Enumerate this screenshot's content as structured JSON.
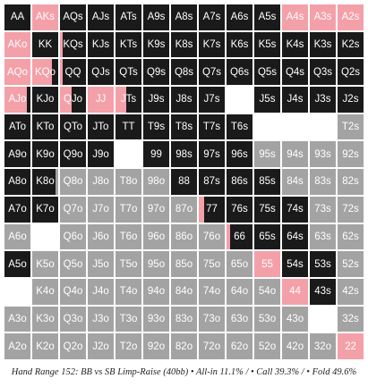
{
  "caption": "Hand Range 152: BB vs SB Limp-Raise (40bb) • All-in 11.1% / • Call 39.3% / • Fold 49.6%",
  "colors": {
    "allin": "#f4a0a9",
    "call": "#1a1a1a",
    "fold": "#a3a3a3",
    "none": "#ffffff"
  },
  "chart_data": {
    "type": "table",
    "title": "Hand Range 152: BB vs SB Limp-Raise (40bb)",
    "summary": {
      "allin_pct": 11.1,
      "call_pct": 39.3,
      "fold_pct": 49.6
    },
    "note": "each cell: action frequencies as fractions [allin, call, fold]",
    "rows": [
      [
        {
          "hand": "AA",
          "a": 0,
          "c": 1,
          "f": 0
        },
        {
          "hand": "AKs",
          "a": 1,
          "c": 0,
          "f": 0
        },
        {
          "hand": "AQs",
          "a": 0,
          "c": 1,
          "f": 0
        },
        {
          "hand": "AJs",
          "a": 0,
          "c": 1,
          "f": 0
        },
        {
          "hand": "ATs",
          "a": 0,
          "c": 1,
          "f": 0
        },
        {
          "hand": "A9s",
          "a": 0,
          "c": 1,
          "f": 0
        },
        {
          "hand": "A8s",
          "a": 0,
          "c": 1,
          "f": 0
        },
        {
          "hand": "A7s",
          "a": 0,
          "c": 1,
          "f": 0
        },
        {
          "hand": "A6s",
          "a": 0,
          "c": 1,
          "f": 0
        },
        {
          "hand": "A5s",
          "a": 0,
          "c": 1,
          "f": 0
        },
        {
          "hand": "A4s",
          "a": 1,
          "c": 0,
          "f": 0
        },
        {
          "hand": "A3s",
          "a": 1,
          "c": 0,
          "f": 0
        },
        {
          "hand": "A2s",
          "a": 1,
          "c": 0,
          "f": 0
        }
      ],
      [
        {
          "hand": "AKo",
          "a": 1,
          "c": 0,
          "f": 0
        },
        {
          "hand": "KK",
          "a": 0,
          "c": 1,
          "f": 0
        },
        {
          "hand": "KQs",
          "a": 0.1,
          "c": 0.9,
          "f": 0
        },
        {
          "hand": "KJs",
          "a": 0,
          "c": 1,
          "f": 0
        },
        {
          "hand": "KTs",
          "a": 0,
          "c": 1,
          "f": 0
        },
        {
          "hand": "K9s",
          "a": 0,
          "c": 1,
          "f": 0
        },
        {
          "hand": "K8s",
          "a": 0,
          "c": 1,
          "f": 0
        },
        {
          "hand": "K7s",
          "a": 0,
          "c": 1,
          "f": 0
        },
        {
          "hand": "K6s",
          "a": 0,
          "c": 1,
          "f": 0
        },
        {
          "hand": "K5s",
          "a": 0,
          "c": 1,
          "f": 0
        },
        {
          "hand": "K4s",
          "a": 0,
          "c": 1,
          "f": 0
        },
        {
          "hand": "K3s",
          "a": 0,
          "c": 1,
          "f": 0
        },
        {
          "hand": "K2s",
          "a": 0,
          "c": 1,
          "f": 0
        }
      ],
      [
        {
          "hand": "AQo",
          "a": 1,
          "c": 0,
          "f": 0
        },
        {
          "hand": "KQo",
          "a": 0.75,
          "c": 0.25,
          "f": 0
        },
        {
          "hand": "QQ",
          "a": 0.1,
          "c": 0.9,
          "f": 0
        },
        {
          "hand": "QJs",
          "a": 0,
          "c": 1,
          "f": 0
        },
        {
          "hand": "QTs",
          "a": 0,
          "c": 1,
          "f": 0
        },
        {
          "hand": "Q9s",
          "a": 0,
          "c": 1,
          "f": 0
        },
        {
          "hand": "Q8s",
          "a": 0,
          "c": 1,
          "f": 0
        },
        {
          "hand": "Q7s",
          "a": 0,
          "c": 1,
          "f": 0
        },
        {
          "hand": "Q6s",
          "a": 0,
          "c": 1,
          "f": 0
        },
        {
          "hand": "Q5s",
          "a": 0,
          "c": 1,
          "f": 0
        },
        {
          "hand": "Q4s",
          "a": 0,
          "c": 1,
          "f": 0
        },
        {
          "hand": "Q3s",
          "a": 0,
          "c": 1,
          "f": 0
        },
        {
          "hand": "Q2s",
          "a": 0,
          "c": 1,
          "f": 0
        }
      ],
      [
        {
          "hand": "AJo",
          "a": 0.85,
          "c": 0.15,
          "f": 0
        },
        {
          "hand": "KJo",
          "a": 0,
          "c": 1,
          "f": 0
        },
        {
          "hand": "QJo",
          "a": 0.45,
          "c": 0.55,
          "f": 0
        },
        {
          "hand": "JJ",
          "a": 1,
          "c": 0,
          "f": 0
        },
        {
          "hand": "JTs",
          "a": 0.4,
          "c": 0.6,
          "f": 0
        },
        {
          "hand": "J9s",
          "a": 0,
          "c": 1,
          "f": 0
        },
        {
          "hand": "J8s",
          "a": 0,
          "c": 1,
          "f": 0
        },
        {
          "hand": "J7s",
          "a": 0,
          "c": 1,
          "f": 0
        },
        {
          "hand": "",
          "a": 0,
          "c": 0,
          "f": 0
        },
        {
          "hand": "J5s",
          "a": 0,
          "c": 1,
          "f": 0
        },
        {
          "hand": "J4s",
          "a": 0,
          "c": 1,
          "f": 0
        },
        {
          "hand": "J3s",
          "a": 0,
          "c": 1,
          "f": 0
        },
        {
          "hand": "J2s",
          "a": 0,
          "c": 1,
          "f": 0
        }
      ],
      [
        {
          "hand": "ATo",
          "a": 0,
          "c": 1,
          "f": 0
        },
        {
          "hand": "KTo",
          "a": 0,
          "c": 1,
          "f": 0
        },
        {
          "hand": "QTo",
          "a": 0,
          "c": 1,
          "f": 0
        },
        {
          "hand": "JTo",
          "a": 0,
          "c": 1,
          "f": 0
        },
        {
          "hand": "TT",
          "a": 0,
          "c": 1,
          "f": 0
        },
        {
          "hand": "T9s",
          "a": 0,
          "c": 1,
          "f": 0
        },
        {
          "hand": "T8s",
          "a": 0,
          "c": 1,
          "f": 0
        },
        {
          "hand": "T7s",
          "a": 0,
          "c": 1,
          "f": 0
        },
        {
          "hand": "T6s",
          "a": 0,
          "c": 1,
          "f": 0
        },
        {
          "hand": "",
          "a": 0,
          "c": 0,
          "f": 0
        },
        {
          "hand": "",
          "a": 0,
          "c": 0,
          "f": 0
        },
        {
          "hand": "",
          "a": 0,
          "c": 0,
          "f": 0
        },
        {
          "hand": "T2s",
          "a": 0,
          "c": 0,
          "f": 1
        }
      ],
      [
        {
          "hand": "A9o",
          "a": 0,
          "c": 1,
          "f": 0
        },
        {
          "hand": "K9o",
          "a": 0,
          "c": 1,
          "f": 0
        },
        {
          "hand": "Q9o",
          "a": 0,
          "c": 1,
          "f": 0
        },
        {
          "hand": "J9o",
          "a": 0,
          "c": 1,
          "f": 0
        },
        {
          "hand": "",
          "a": 0,
          "c": 0,
          "f": 0
        },
        {
          "hand": "99",
          "a": 0,
          "c": 1,
          "f": 0
        },
        {
          "hand": "98s",
          "a": 0,
          "c": 1,
          "f": 0
        },
        {
          "hand": "97s",
          "a": 0,
          "c": 1,
          "f": 0
        },
        {
          "hand": "96s",
          "a": 0,
          "c": 1,
          "f": 0
        },
        {
          "hand": "95s",
          "a": 0,
          "c": 0,
          "f": 1
        },
        {
          "hand": "94s",
          "a": 0,
          "c": 0,
          "f": 1
        },
        {
          "hand": "93s",
          "a": 0,
          "c": 0,
          "f": 1
        },
        {
          "hand": "92s",
          "a": 0,
          "c": 0,
          "f": 1
        }
      ],
      [
        {
          "hand": "A8o",
          "a": 0,
          "c": 1,
          "f": 0
        },
        {
          "hand": "K8o",
          "a": 0,
          "c": 0.9,
          "f": 0.1
        },
        {
          "hand": "Q8o",
          "a": 0,
          "c": 0,
          "f": 1
        },
        {
          "hand": "J8o",
          "a": 0,
          "c": 0,
          "f": 1
        },
        {
          "hand": "T8o",
          "a": 0,
          "c": 0,
          "f": 1
        },
        {
          "hand": "98o",
          "a": 0,
          "c": 0,
          "f": 1
        },
        {
          "hand": "88",
          "a": 0,
          "c": 1,
          "f": 0
        },
        {
          "hand": "87s",
          "a": 0,
          "c": 1,
          "f": 0
        },
        {
          "hand": "86s",
          "a": 0,
          "c": 1,
          "f": 0
        },
        {
          "hand": "85s",
          "a": 0,
          "c": 1,
          "f": 0
        },
        {
          "hand": "84s",
          "a": 0,
          "c": 0,
          "f": 1
        },
        {
          "hand": "83s",
          "a": 0,
          "c": 0,
          "f": 1
        },
        {
          "hand": "82s",
          "a": 0,
          "c": 0,
          "f": 1
        }
      ],
      [
        {
          "hand": "A7o",
          "a": 0,
          "c": 1,
          "f": 0
        },
        {
          "hand": "K7o",
          "a": 0,
          "c": 1,
          "f": 0
        },
        {
          "hand": "Q7o",
          "a": 0,
          "c": 0,
          "f": 1
        },
        {
          "hand": "J7o",
          "a": 0,
          "c": 0,
          "f": 1
        },
        {
          "hand": "T7o",
          "a": 0,
          "c": 0,
          "f": 1
        },
        {
          "hand": "97o",
          "a": 0,
          "c": 0,
          "f": 1
        },
        {
          "hand": "87o",
          "a": 0,
          "c": 0,
          "f": 1
        },
        {
          "hand": "77",
          "a": 0.2,
          "c": 0.8,
          "f": 0
        },
        {
          "hand": "76s",
          "a": 0,
          "c": 1,
          "f": 0
        },
        {
          "hand": "75s",
          "a": 0,
          "c": 1,
          "f": 0
        },
        {
          "hand": "74s",
          "a": 0,
          "c": 1,
          "f": 0
        },
        {
          "hand": "73s",
          "a": 0,
          "c": 0,
          "f": 1
        },
        {
          "hand": "72s",
          "a": 0,
          "c": 0,
          "f": 1
        }
      ],
      [
        {
          "hand": "A6o",
          "a": 0,
          "c": 0,
          "f": 1
        },
        {
          "hand": "",
          "a": 0,
          "c": 0,
          "f": 0
        },
        {
          "hand": "Q6o",
          "a": 0,
          "c": 0,
          "f": 1
        },
        {
          "hand": "J6o",
          "a": 0,
          "c": 0,
          "f": 1
        },
        {
          "hand": "T6o",
          "a": 0,
          "c": 0,
          "f": 1
        },
        {
          "hand": "96o",
          "a": 0,
          "c": 0,
          "f": 1
        },
        {
          "hand": "86o",
          "a": 0,
          "c": 0,
          "f": 1
        },
        {
          "hand": "76o",
          "a": 0,
          "c": 0,
          "f": 1
        },
        {
          "hand": "66",
          "a": 0.15,
          "c": 0.85,
          "f": 0
        },
        {
          "hand": "65s",
          "a": 0,
          "c": 1,
          "f": 0
        },
        {
          "hand": "64s",
          "a": 0,
          "c": 1,
          "f": 0
        },
        {
          "hand": "63s",
          "a": 0,
          "c": 0,
          "f": 1
        },
        {
          "hand": "62s",
          "a": 0,
          "c": 0,
          "f": 1
        }
      ],
      [
        {
          "hand": "A5o",
          "a": 0,
          "c": 1,
          "f": 0
        },
        {
          "hand": "K5o",
          "a": 0,
          "c": 0,
          "f": 1
        },
        {
          "hand": "Q5o",
          "a": 0,
          "c": 0,
          "f": 1
        },
        {
          "hand": "J5o",
          "a": 0,
          "c": 0,
          "f": 1
        },
        {
          "hand": "T5o",
          "a": 0,
          "c": 0,
          "f": 1
        },
        {
          "hand": "95o",
          "a": 0,
          "c": 0,
          "f": 1
        },
        {
          "hand": "85o",
          "a": 0,
          "c": 0,
          "f": 1
        },
        {
          "hand": "75o",
          "a": 0,
          "c": 0,
          "f": 1
        },
        {
          "hand": "65o",
          "a": 0,
          "c": 0,
          "f": 1
        },
        {
          "hand": "55",
          "a": 1,
          "c": 0,
          "f": 0
        },
        {
          "hand": "54s",
          "a": 0,
          "c": 1,
          "f": 0
        },
        {
          "hand": "53s",
          "a": 0,
          "c": 1,
          "f": 0
        },
        {
          "hand": "52s",
          "a": 0,
          "c": 0,
          "f": 1
        }
      ],
      [
        {
          "hand": "",
          "a": 0,
          "c": 0,
          "f": 0
        },
        {
          "hand": "K4o",
          "a": 0,
          "c": 0,
          "f": 1
        },
        {
          "hand": "Q4o",
          "a": 0,
          "c": 0,
          "f": 1
        },
        {
          "hand": "J4o",
          "a": 0,
          "c": 0,
          "f": 1
        },
        {
          "hand": "T4o",
          "a": 0,
          "c": 0,
          "f": 1
        },
        {
          "hand": "94o",
          "a": 0,
          "c": 0,
          "f": 1
        },
        {
          "hand": "84o",
          "a": 0,
          "c": 0,
          "f": 1
        },
        {
          "hand": "74o",
          "a": 0,
          "c": 0,
          "f": 1
        },
        {
          "hand": "64o",
          "a": 0,
          "c": 0,
          "f": 1
        },
        {
          "hand": "54o",
          "a": 0,
          "c": 0,
          "f": 1
        },
        {
          "hand": "44",
          "a": 1,
          "c": 0,
          "f": 0
        },
        {
          "hand": "43s",
          "a": 0,
          "c": 1,
          "f": 0
        },
        {
          "hand": "42s",
          "a": 0,
          "c": 0,
          "f": 1
        }
      ],
      [
        {
          "hand": "A3o",
          "a": 0,
          "c": 0,
          "f": 1
        },
        {
          "hand": "K3o",
          "a": 0,
          "c": 0,
          "f": 1
        },
        {
          "hand": "Q3o",
          "a": 0,
          "c": 0,
          "f": 1
        },
        {
          "hand": "J3o",
          "a": 0,
          "c": 0,
          "f": 1
        },
        {
          "hand": "T3o",
          "a": 0,
          "c": 0,
          "f": 1
        },
        {
          "hand": "93o",
          "a": 0,
          "c": 0,
          "f": 1
        },
        {
          "hand": "83o",
          "a": 0,
          "c": 0,
          "f": 1
        },
        {
          "hand": "73o",
          "a": 0,
          "c": 0,
          "f": 1
        },
        {
          "hand": "63o",
          "a": 0,
          "c": 0,
          "f": 1
        },
        {
          "hand": "53o",
          "a": 0,
          "c": 0,
          "f": 1
        },
        {
          "hand": "43o",
          "a": 0,
          "c": 0,
          "f": 1
        },
        {
          "hand": "",
          "a": 0,
          "c": 0,
          "f": 0
        },
        {
          "hand": "32s",
          "a": 0,
          "c": 0,
          "f": 1
        }
      ],
      [
        {
          "hand": "A2o",
          "a": 0,
          "c": 0,
          "f": 1
        },
        {
          "hand": "K2o",
          "a": 0,
          "c": 0,
          "f": 1
        },
        {
          "hand": "Q2o",
          "a": 0,
          "c": 0,
          "f": 1
        },
        {
          "hand": "J2o",
          "a": 0,
          "c": 0,
          "f": 1
        },
        {
          "hand": "T2o",
          "a": 0,
          "c": 0,
          "f": 1
        },
        {
          "hand": "92o",
          "a": 0,
          "c": 0,
          "f": 1
        },
        {
          "hand": "82o",
          "a": 0,
          "c": 0,
          "f": 1
        },
        {
          "hand": "72o",
          "a": 0,
          "c": 0,
          "f": 1
        },
        {
          "hand": "62o",
          "a": 0,
          "c": 0,
          "f": 1
        },
        {
          "hand": "52o",
          "a": 0,
          "c": 0,
          "f": 1
        },
        {
          "hand": "42o",
          "a": 0,
          "c": 0,
          "f": 1
        },
        {
          "hand": "32o",
          "a": 0,
          "c": 0,
          "f": 1
        },
        {
          "hand": "22",
          "a": 1,
          "c": 0,
          "f": 0
        }
      ]
    ]
  }
}
